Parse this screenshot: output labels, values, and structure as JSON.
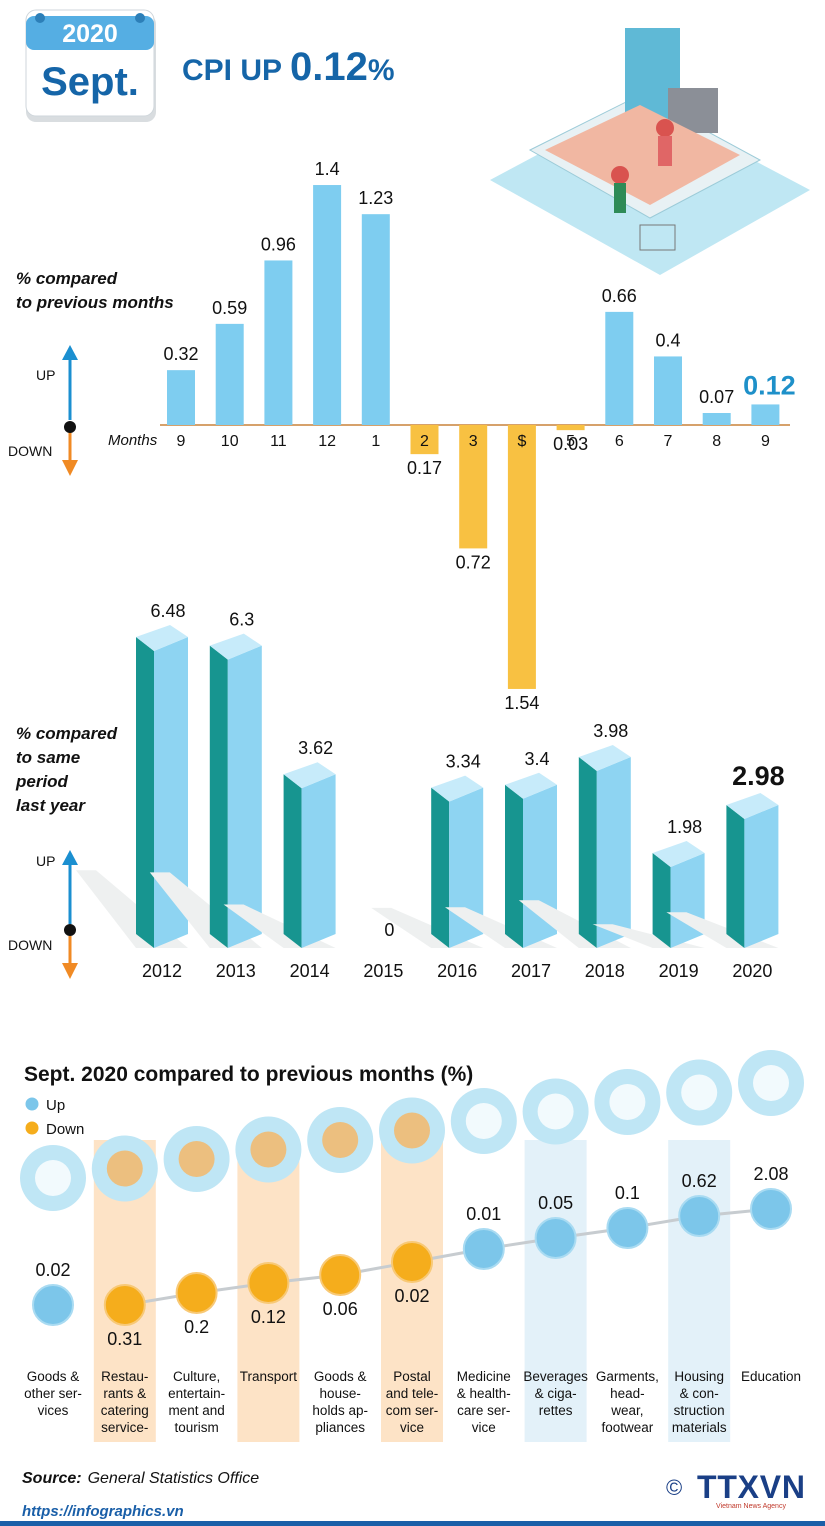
{
  "header": {
    "year": "2020",
    "month": "Sept.",
    "title": "CPI UP",
    "value": "0.12",
    "unit": "%"
  },
  "chart_data": [
    {
      "type": "bar",
      "label": "% compared\nto previous months",
      "xlabel": "Months",
      "up": "UP",
      "down": "DOWN",
      "categories": [
        "9",
        "10",
        "11",
        "12",
        "1",
        "2",
        "3",
        "$",
        "5",
        "6",
        "7",
        "8",
        "9"
      ],
      "values": [
        0.32,
        0.59,
        0.96,
        1.4,
        1.23,
        -0.17,
        -0.72,
        -1.54,
        -0.03,
        0.66,
        0.4,
        0.07,
        0.12
      ],
      "value_labels": [
        "0.32",
        "0.59",
        "0.96",
        "1.4",
        "1.23",
        "0.17",
        "0.72",
        "1.54",
        "0.03",
        "0.66",
        "0.4",
        "0.07",
        "0.12"
      ],
      "color_up": "#7ecdf0",
      "color_down": "#f8c142"
    },
    {
      "type": "bar3d",
      "label": "% compared\nto same\nperiod\nlast year",
      "up": "UP",
      "down": "DOWN",
      "categories": [
        "2012",
        "2013",
        "2014",
        "2015",
        "2016",
        "2017",
        "2018",
        "2019",
        "2020"
      ],
      "values": [
        6.48,
        6.3,
        3.62,
        0,
        3.34,
        3.4,
        3.98,
        1.98,
        2.98
      ],
      "color": "#8ed4f2",
      "side_color": "#179590",
      "top_color": "#c7ebfa"
    },
    {
      "type": "dot",
      "title": "Sept. 2020 compared to previous months (%)",
      "legend": [
        {
          "name": "Up",
          "color": "#7cc6ea"
        },
        {
          "name": "Down",
          "color": "#f5ad1c"
        }
      ],
      "categories": [
        "Goods &\nother ser-\nvices",
        "Restau-\nrants &\ncatering\nservice-",
        "Culture,\nentertain-\nment and\ntourism",
        "Transport",
        "Goods &\nhouse-\nholds ap-\npliances",
        "Postal\nand tele-\ncom ser-\nvice",
        "Medicine\n& health-\ncare ser-\nvice",
        "Beverages\n& ciga-\nrettes",
        "Garments,\nhead-\nwear,\nfootwear",
        "Housing\n& con-\nstruction\nmaterials",
        "Education"
      ],
      "values": [
        0.02,
        -0.31,
        -0.2,
        -0.12,
        -0.06,
        -0.02,
        0.01,
        0.05,
        0.1,
        0.62,
        2.08
      ],
      "value_labels": [
        "0.02",
        "0.31",
        "0.2",
        "0.12",
        "0.06",
        "0.02",
        "0.01",
        "0.05",
        "0.1",
        "0.62",
        "2.08"
      ]
    }
  ],
  "footer": {
    "source_label": "Source:",
    "source": "General Statistics Office",
    "url": "https://infographics.vn",
    "copyright": "©",
    "agency": "TTXVN",
    "agency_full": "Vietnam News Agency"
  }
}
